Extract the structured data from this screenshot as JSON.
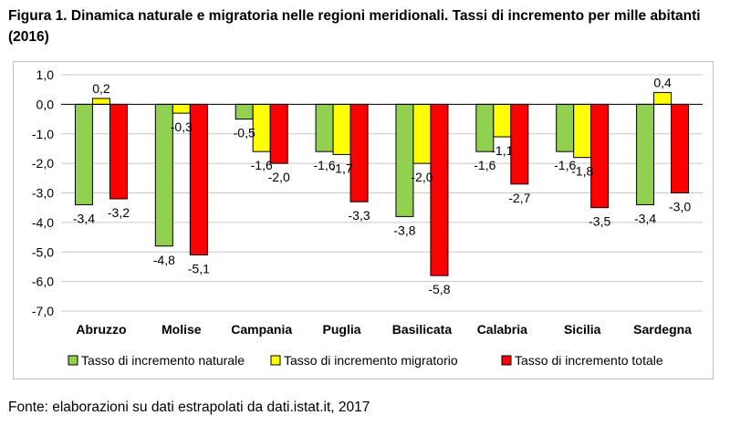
{
  "figure": {
    "title": "Figura 1. Dinamica naturale e migratoria nelle regioni meridionali. Tassi di incremento per mille abitanti (2016)",
    "source": "Fonte: elaborazioni su dati estrapolati da dati.istat.it, 2017"
  },
  "chart_data": {
    "type": "bar",
    "categories": [
      "Abruzzo",
      "Molise",
      "Campania",
      "Puglia",
      "Basilicata",
      "Calabria",
      "Sicilia",
      "Sardegna"
    ],
    "series": [
      {
        "name": "Tasso di incremento naturale",
        "color": "#92d050",
        "values": [
          -3.4,
          -4.8,
          -0.5,
          -1.6,
          -3.8,
          -1.6,
          -1.6,
          -3.4
        ],
        "labels": [
          "-3,4",
          "-4,8",
          "-0,5",
          "-1,6",
          "-3,8",
          "-1,6",
          "-1,6",
          "-3,4"
        ]
      },
      {
        "name": "Tasso di incremento migratorio",
        "color": "#ffff00",
        "values": [
          0.2,
          -0.3,
          -1.6,
          -1.7,
          -2.0,
          -1.1,
          -1.8,
          0.4
        ],
        "labels": [
          "0,2",
          "-0,3",
          "-1,6",
          "-1,7",
          "-2,0",
          "-1,1",
          "-1,8",
          "0,4"
        ]
      },
      {
        "name": "Tasso di incremento totale",
        "color": "#ff0000",
        "values": [
          -3.2,
          -5.1,
          -2.0,
          -3.3,
          -5.8,
          -2.7,
          -3.5,
          -3.0
        ],
        "labels": [
          "-3,2",
          "-5,1",
          "-2,0",
          "-3,3",
          "-5,8",
          "-2,7",
          "-3,5",
          "-3,0"
        ]
      }
    ],
    "ylim": [
      -7.0,
      1.0
    ],
    "y_ticks": [
      1.0,
      0.0,
      -1.0,
      -2.0,
      -3.0,
      -4.0,
      -5.0,
      -6.0,
      -7.0
    ],
    "y_tick_labels": [
      "1,0",
      "0,0",
      "-1,0",
      "-2,0",
      "-3,0",
      "-4,0",
      "-5,0",
      "-6,0",
      "-7,0"
    ],
    "xlabel": "",
    "ylabel": "",
    "grid": true,
    "legend_position": "bottom"
  }
}
